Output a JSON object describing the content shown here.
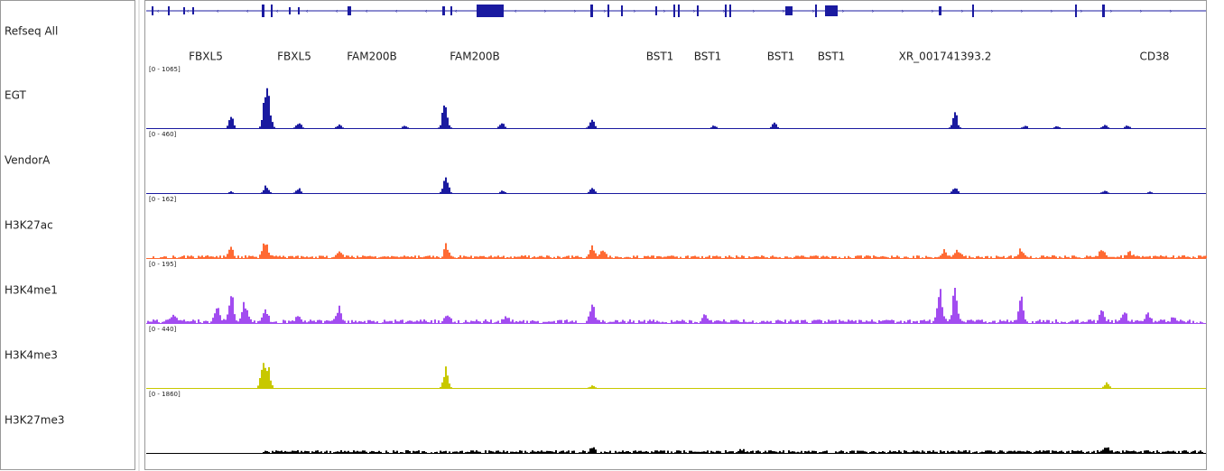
{
  "refseq": {
    "name": "Refseq All",
    "genes": [
      "FBXL5",
      "FBXL5",
      "FAM200B",
      "FAM200B",
      "BST1",
      "BST1",
      "BST1",
      "BST1",
      "XR_001741393.2",
      "CD38"
    ]
  },
  "tracks": [
    {
      "name": "EGT",
      "range": "[0 - 1065]",
      "color": "#1a1aa0"
    },
    {
      "name": "VendorA",
      "range": "[0 - 460]",
      "color": "#1a1aa0"
    },
    {
      "name": "H3K27ac",
      "range": "[0 - 162]",
      "color": "#ff6a33"
    },
    {
      "name": "H3K4me1",
      "range": "[0 - 195]",
      "color": "#a24cf0"
    },
    {
      "name": "H3K4me3",
      "range": "[0 - 440]",
      "color": "#c8c800"
    },
    {
      "name": "H3K27me3",
      "range": "[0 - 1860]",
      "color": "#000000"
    }
  ]
}
